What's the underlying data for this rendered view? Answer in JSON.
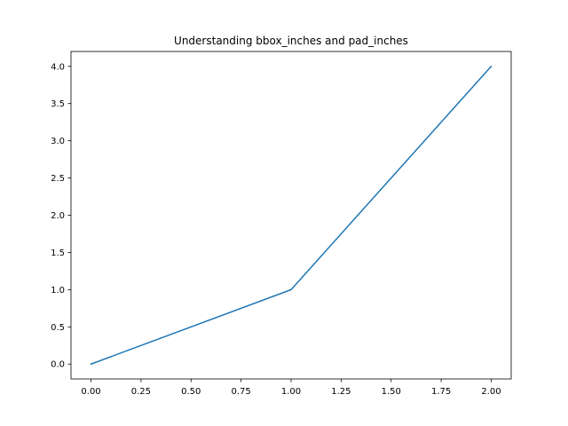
{
  "chart_data": {
    "type": "line",
    "title": "Understanding bbox_inches and pad_inches",
    "xlabel": "",
    "ylabel": "",
    "x": [
      0,
      1,
      2
    ],
    "series": [
      {
        "values": [
          0,
          1,
          4
        ],
        "color": "#1f77b4"
      }
    ],
    "xlim": [
      -0.1,
      2.1
    ],
    "ylim": [
      -0.2,
      4.2
    ],
    "xticks": [
      0.0,
      0.25,
      0.5,
      0.75,
      1.0,
      1.25,
      1.5,
      1.75,
      2.0
    ],
    "xtick_labels": [
      "0.00",
      "0.25",
      "0.50",
      "0.75",
      "1.00",
      "1.25",
      "1.50",
      "1.75",
      "2.00"
    ],
    "yticks": [
      0.0,
      0.5,
      1.0,
      1.5,
      2.0,
      2.5,
      3.0,
      3.5,
      4.0
    ],
    "ytick_labels": [
      "0.0",
      "0.5",
      "1.0",
      "1.5",
      "2.0",
      "2.5",
      "3.0",
      "3.5",
      "4.0"
    ],
    "grid": false,
    "legend": "none"
  }
}
